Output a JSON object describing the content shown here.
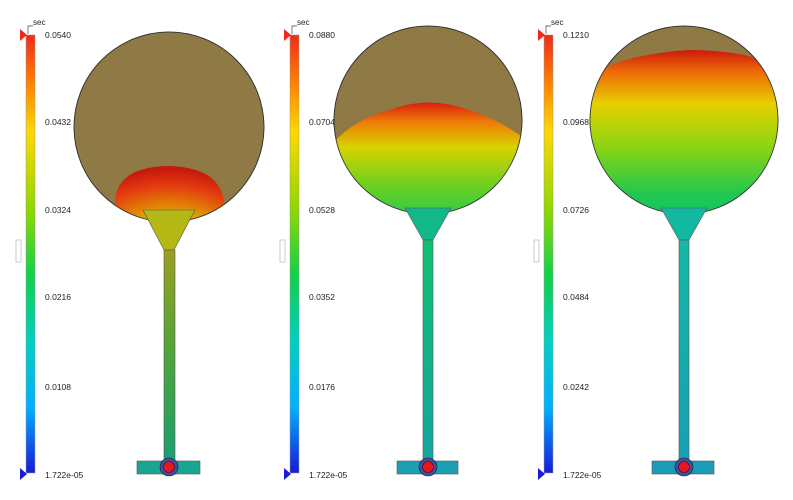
{
  "legend_unit": "sec",
  "colors": {
    "unfilled": "#8f7a45",
    "marker_top": "#ee2b1a",
    "marker_bottom": "#1c1cd8",
    "gate_ring": "#3a4fa8",
    "gate_core": "#e5181f"
  },
  "panels": [
    {
      "ticks": [
        "0.0540",
        "0.0432",
        "0.0324",
        "0.0216",
        "0.0108",
        "1.722e-05"
      ]
    },
    {
      "ticks": [
        "0.0880",
        "0.0704",
        "0.0528",
        "0.0352",
        "0.0176",
        "1.722e-05"
      ]
    },
    {
      "ticks": [
        "0.1210",
        "0.0968",
        "0.0726",
        "0.0484",
        "0.0242",
        "1.722e-05"
      ]
    }
  ]
}
